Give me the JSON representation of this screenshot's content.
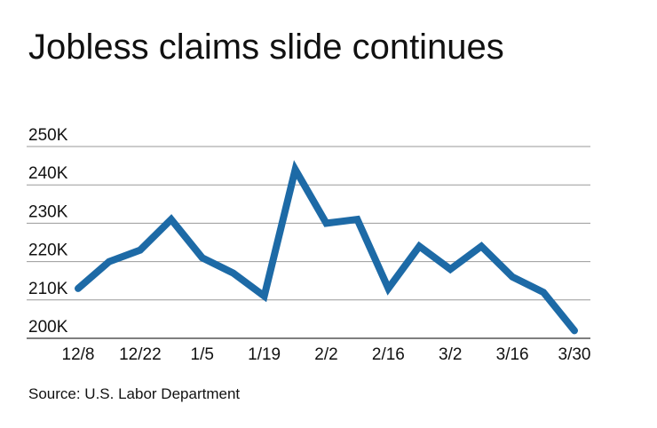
{
  "chart_data": {
    "type": "line",
    "title": "Jobless claims slide continues",
    "source": "Source: U.S. Labor Department",
    "categories": [
      "12/8",
      null,
      "12/22",
      null,
      "1/5",
      null,
      "1/19",
      null,
      "2/2",
      null,
      "2/16",
      null,
      "3/2",
      null,
      "3/16",
      null,
      "3/30"
    ],
    "series": [
      {
        "color": "#1d6aa6",
        "values": [
          213000,
          220000,
          223000,
          231000,
          221000,
          217000,
          211000,
          244000,
          230000,
          231000,
          213000,
          224000,
          218000,
          224000,
          216000,
          212000,
          202000
        ]
      }
    ],
    "ylim": [
      200000,
      250000
    ],
    "yticks": [
      {
        "value": 200000,
        "label": "200K"
      },
      {
        "value": 210000,
        "label": "210K"
      },
      {
        "value": 220000,
        "label": "220K"
      },
      {
        "value": 230000,
        "label": "230K"
      },
      {
        "value": 240000,
        "label": "240K"
      },
      {
        "value": 250000,
        "label": "250K"
      }
    ],
    "grid": true
  }
}
